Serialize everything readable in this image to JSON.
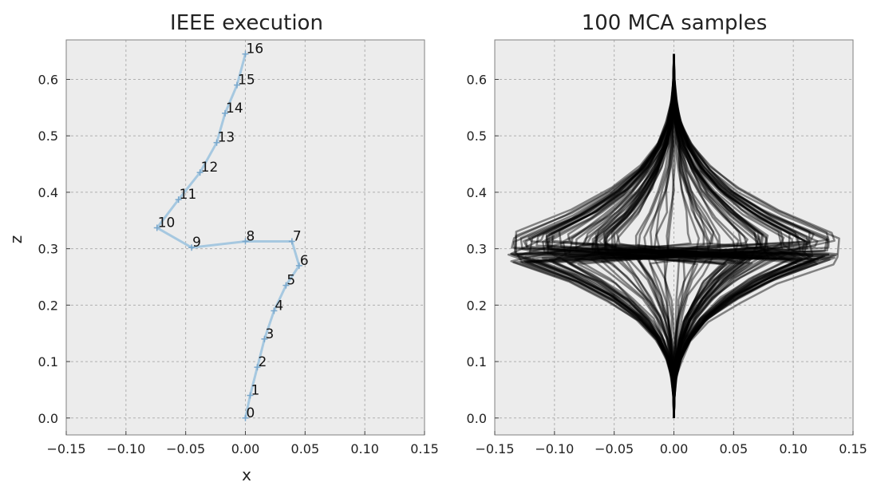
{
  "chart_data": [
    {
      "type": "line",
      "title": "IEEE execution",
      "xlabel": "x",
      "ylabel": "z",
      "xlim": [
        -0.15,
        0.15
      ],
      "ylim": [
        -0.03,
        0.67
      ],
      "xticks": [
        -0.15,
        -0.1,
        -0.05,
        0.0,
        0.05,
        0.1,
        0.15
      ],
      "xtick_labels": [
        "−0.15",
        "−0.10",
        "−0.05",
        "0.00",
        "0.05",
        "0.10",
        "0.15"
      ],
      "yticks": [
        0.0,
        0.1,
        0.2,
        0.3,
        0.4,
        0.5,
        0.6
      ],
      "ytick_labels": [
        "0.0",
        "0.1",
        "0.2",
        "0.3",
        "0.4",
        "0.5",
        "0.6"
      ],
      "grid": true,
      "series": [
        {
          "color": "#a6c8e0",
          "points": [
            {
              "label": "0",
              "x": 0.0,
              "z": 0.0
            },
            {
              "label": "1",
              "x": 0.004,
              "z": 0.04
            },
            {
              "label": "2",
              "x": 0.01,
              "z": 0.09
            },
            {
              "label": "3",
              "x": 0.016,
              "z": 0.14
            },
            {
              "label": "4",
              "x": 0.024,
              "z": 0.19
            },
            {
              "label": "5",
              "x": 0.034,
              "z": 0.235
            },
            {
              "label": "6",
              "x": 0.045,
              "z": 0.27
            },
            {
              "label": "7",
              "x": 0.039,
              "z": 0.313
            },
            {
              "label": "8",
              "x": 0.0,
              "z": 0.313
            },
            {
              "label": "9",
              "x": -0.045,
              "z": 0.302
            },
            {
              "label": "10",
              "x": -0.074,
              "z": 0.337
            },
            {
              "label": "11",
              "x": -0.056,
              "z": 0.387
            },
            {
              "label": "12",
              "x": -0.038,
              "z": 0.435
            },
            {
              "label": "13",
              "x": -0.024,
              "z": 0.488
            },
            {
              "label": "14",
              "x": -0.017,
              "z": 0.54
            },
            {
              "label": "15",
              "x": -0.007,
              "z": 0.59
            },
            {
              "label": "16",
              "x": 0.0,
              "z": 0.645
            }
          ]
        }
      ]
    },
    {
      "type": "line",
      "title": "100 MCA samples",
      "xlim": [
        -0.15,
        0.15
      ],
      "ylim": [
        -0.03,
        0.67
      ],
      "xticks": [
        -0.15,
        -0.1,
        -0.05,
        0.0,
        0.05,
        0.1,
        0.15
      ],
      "xtick_labels": [
        "−0.15",
        "−0.10",
        "−0.05",
        "0.00",
        "0.05",
        "0.10",
        "0.15"
      ],
      "yticks": [
        0.0,
        0.1,
        0.2,
        0.3,
        0.4,
        0.5,
        0.6
      ],
      "ytick_labels": [
        "0.0",
        "0.1",
        "0.2",
        "0.3",
        "0.4",
        "0.5",
        "0.6"
      ],
      "grid": true,
      "series_color": "#000000",
      "series_opacity": 0.45,
      "sample_count": 100,
      "envelope": {
        "z_bottom": 0.0,
        "z_top": 0.645,
        "z_center_low": 0.282,
        "z_center_high": 0.322,
        "max_abs_x": 0.138
      }
    }
  ]
}
